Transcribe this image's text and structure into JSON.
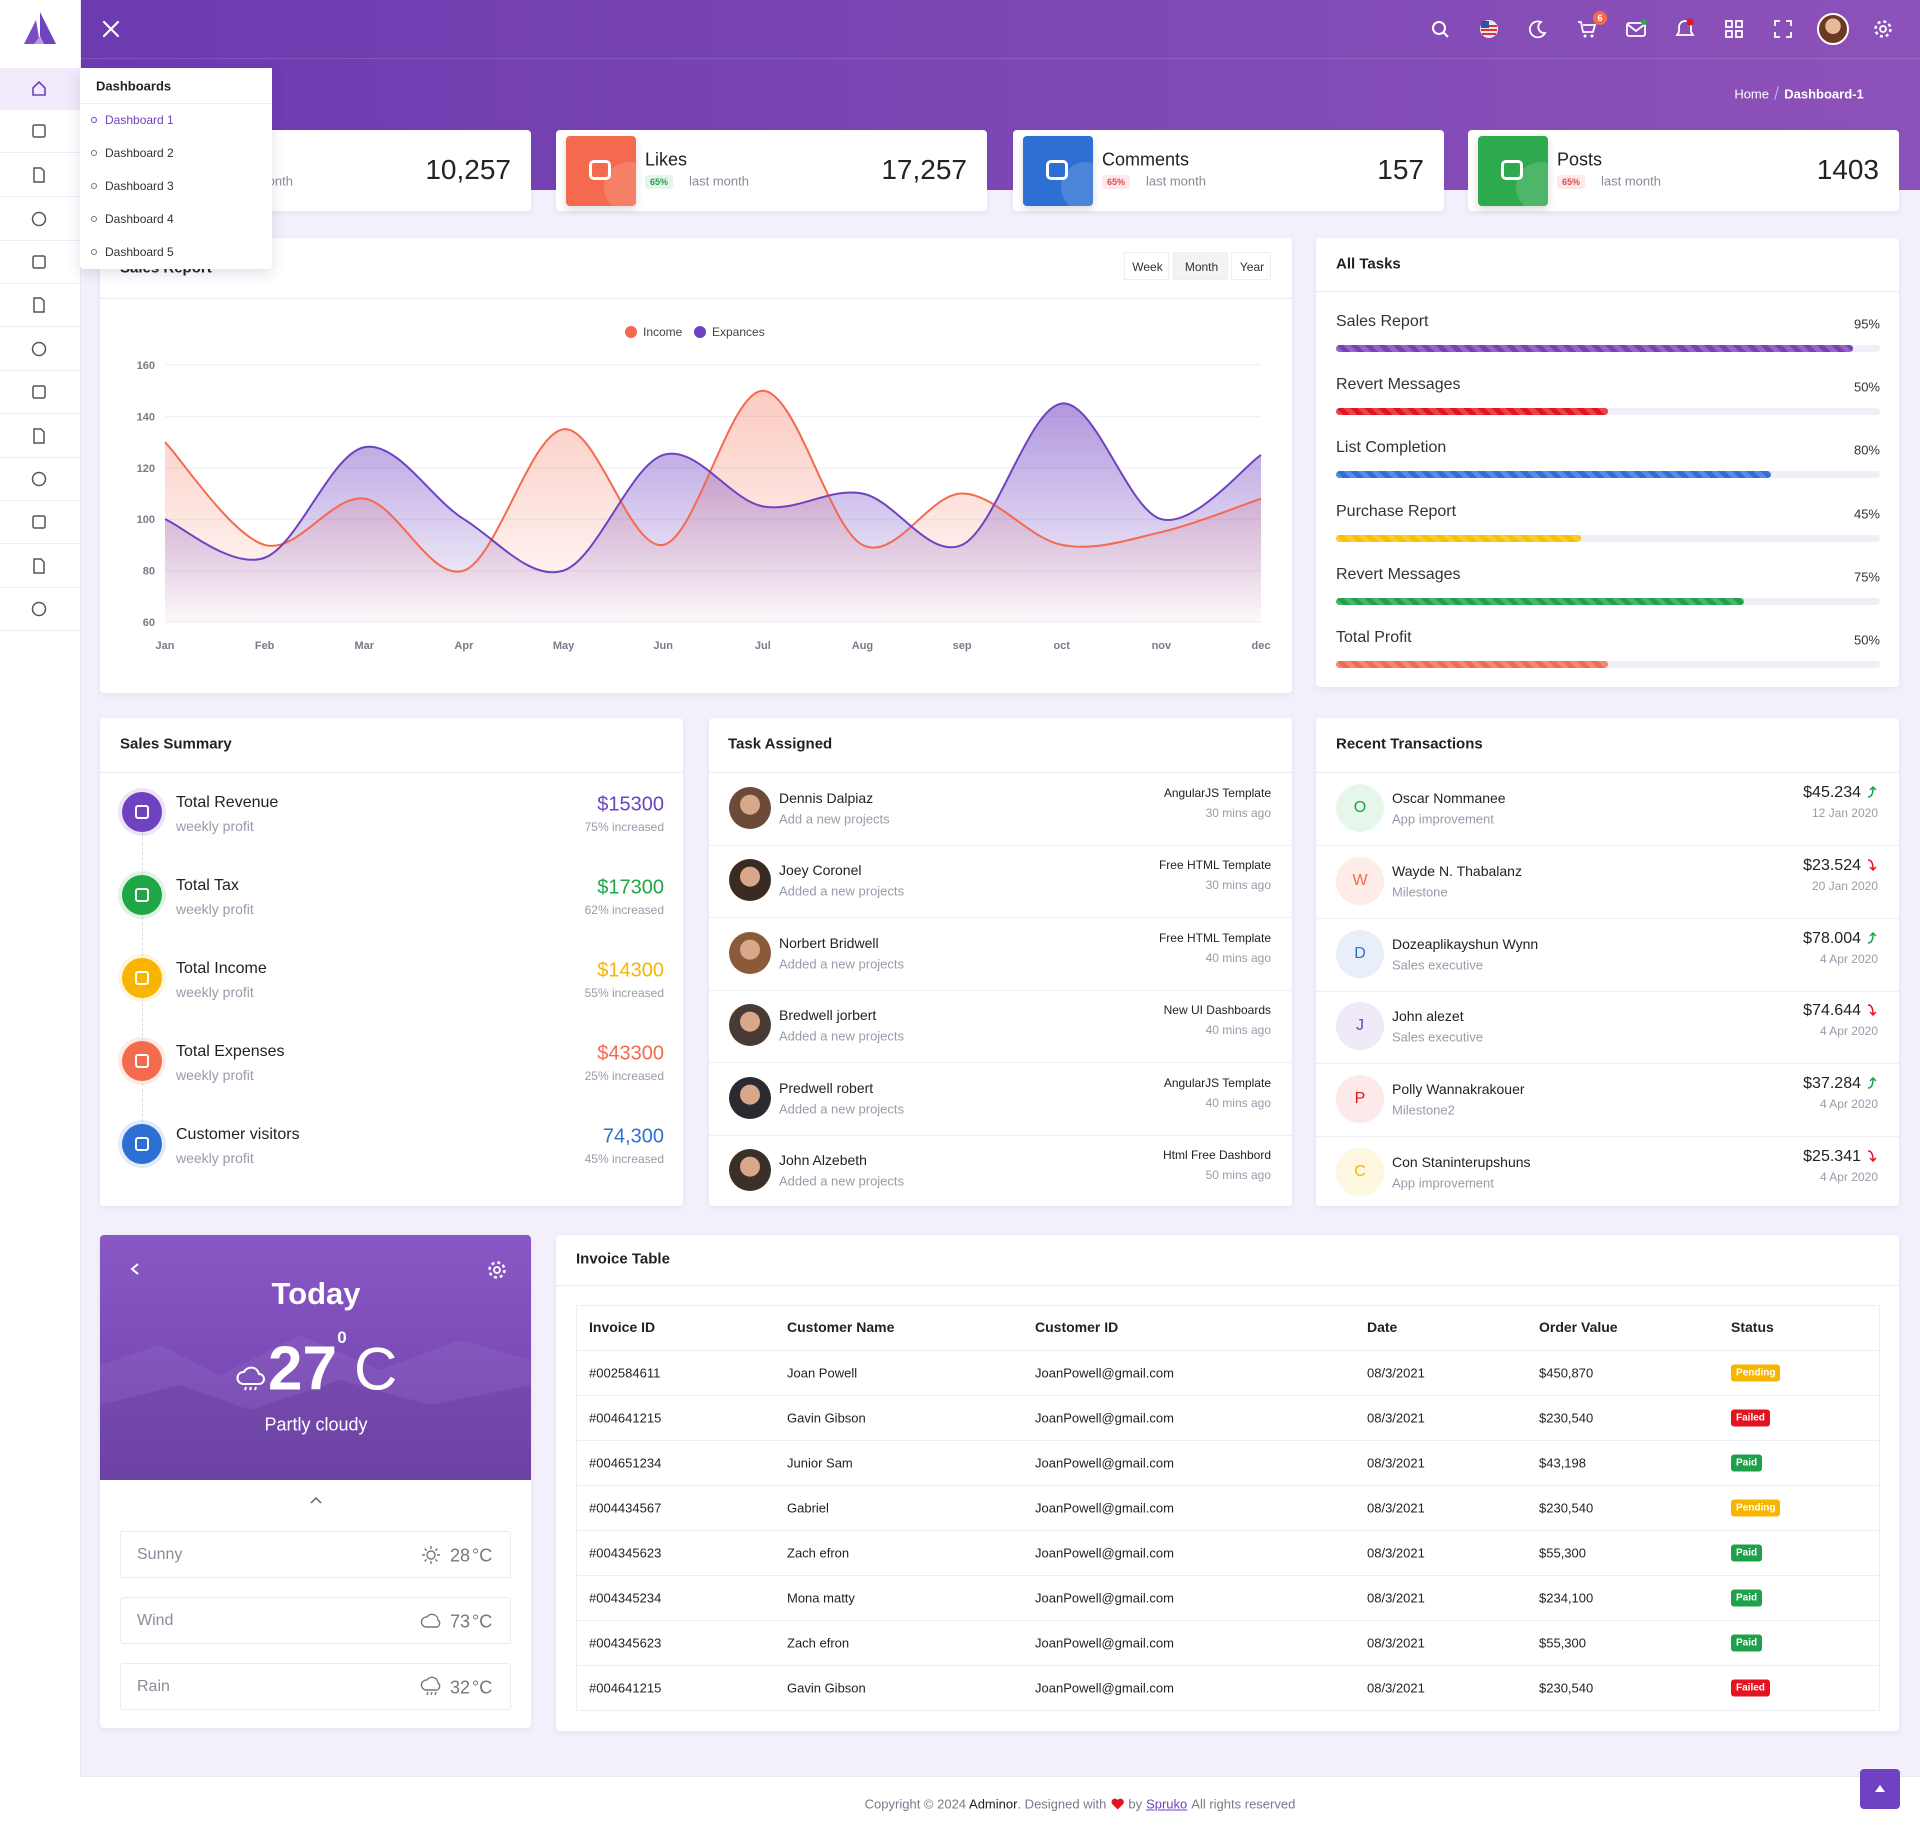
{
  "breadcrumb": {
    "home": "Home",
    "current": "Dashboard-1"
  },
  "menu": {
    "title": "Dashboards",
    "items": [
      "Dashboard 1",
      "Dashboard 2",
      "Dashboard 3",
      "Dashboard 4",
      "Dashboard 5"
    ]
  },
  "stats": [
    {
      "subtitle": "last month",
      "value": "10,257",
      "color": "#7a47b6"
    },
    {
      "title": "Likes",
      "badge": "65%",
      "subtitle": "last month",
      "value": "17,257",
      "color": "#f46a4e",
      "badge_color": "#1f9d4c",
      "badge_bg": "#e4f6ea"
    },
    {
      "title": "Comments",
      "badge": "65%",
      "subtitle": "last month",
      "value": "157",
      "color": "#2d6fd3",
      "badge_color": "#e5484d",
      "badge_bg": "#fde8ea"
    },
    {
      "title": "Posts",
      "badge": "65%",
      "subtitle": "last month",
      "value": "1403",
      "color": "#2eaa4e",
      "badge_color": "#e5484d",
      "badge_bg": "#fde8ea"
    }
  ],
  "sales_report": {
    "buttons": [
      "Week",
      "Month",
      "Year"
    ]
  },
  "chart_data": {
    "type": "line",
    "title": "Sales Report",
    "categories": [
      "Jan",
      "Feb",
      "Mar",
      "Apr",
      "May",
      "Jun",
      "Jul",
      "Aug",
      "sep",
      "oct",
      "nov",
      "dec"
    ],
    "series": [
      {
        "name": "Income",
        "color": "#f46a4e",
        "values": [
          130,
          90,
          108,
          80,
          135,
          90,
          150,
          90,
          110,
          90,
          95,
          108
        ]
      },
      {
        "name": "Expances",
        "color": "#6f42c1",
        "values": [
          100,
          85,
          128,
          100,
          80,
          125,
          105,
          110,
          90,
          145,
          100,
          125
        ]
      }
    ],
    "ylim": [
      60,
      160
    ],
    "yticks": [
      60,
      80,
      100,
      120,
      140,
      160
    ],
    "grid": true,
    "legend": "top"
  },
  "all_tasks": {
    "title": "All Tasks",
    "items": [
      {
        "name": "Sales Report",
        "value": 95,
        "value_label": "95%",
        "color": "#7b3fb8"
      },
      {
        "name": "Revert Messages",
        "value": 50,
        "value_label": "50%",
        "color": "#e3141f"
      },
      {
        "name": "List Completion",
        "value": 80,
        "value_label": "80%",
        "color": "#2f6fd6"
      },
      {
        "name": "Purchase Report",
        "value": 45,
        "value_label": "45%",
        "color": "#f7c000"
      },
      {
        "name": "Revert Messages",
        "value": 75,
        "value_label": "75%",
        "color": "#1fa04a"
      },
      {
        "name": "Total Profit",
        "value": 50,
        "value_label": "50%",
        "color": "#f06b54"
      }
    ]
  },
  "sales_summary": {
    "title": "Sales Summary",
    "items": [
      {
        "title": "Total Revenue",
        "subtitle": "weekly profit",
        "amount": "$15300",
        "change": "75% increased",
        "color": "#6f42c1"
      },
      {
        "title": "Total Tax",
        "subtitle": "weekly profit",
        "amount": "$17300",
        "change": "62% increased",
        "color": "#20a745"
      },
      {
        "title": "Total Income",
        "subtitle": "weekly profit",
        "amount": "$14300",
        "change": "55% increased",
        "color": "#f7b500"
      },
      {
        "title": "Total Expenses",
        "subtitle": "weekly profit",
        "amount": "$43300",
        "change": "25% increased",
        "color": "#f46a4e"
      },
      {
        "title": "Customer visitors",
        "subtitle": "weekly profit",
        "amount": "74,300",
        "change": "45% increased",
        "color": "#2d6fd3"
      }
    ]
  },
  "task_assigned": {
    "title": "Task Assigned",
    "items": [
      {
        "name": "Dennis Dalpiaz",
        "desc": "Add a new projects",
        "project": "AngularJS Template",
        "time": "30 mins ago"
      },
      {
        "name": "Joey Coronel",
        "desc": "Added a new projects",
        "project": "Free HTML Template",
        "time": "30 mins ago"
      },
      {
        "name": "Norbert Bridwell",
        "desc": "Added a new projects",
        "project": "Free HTML Template",
        "time": "40 mins ago"
      },
      {
        "name": "Bredwell jorbert",
        "desc": "Added a new projects",
        "project": "New UI Dashboards",
        "time": "40 mins ago"
      },
      {
        "name": "Predwell robert",
        "desc": "Added a new projects",
        "project": "AngularJS Template",
        "time": "40 mins ago"
      },
      {
        "name": "John Alzebeth",
        "desc": "Added a new projects",
        "project": "Html Free Dashbord",
        "time": "50 mins ago"
      }
    ]
  },
  "recent_transactions": {
    "title": "Recent Transactions",
    "items": [
      {
        "initial": "O",
        "name": "Oscar Nommanee",
        "desc": "App improvement",
        "amount": "$45.234",
        "date": "12 Jan 2020",
        "trend": "up",
        "color": "#1f9d4c",
        "bg": "#e6f6ea"
      },
      {
        "initial": "W",
        "name": "Wayde N. Thabalanz",
        "desc": "Milestone",
        "amount": "$23.524",
        "date": "20 Jan 2020",
        "trend": "down",
        "color": "#f06b54",
        "bg": "#fdece8"
      },
      {
        "initial": "D",
        "name": "Dozeaplikayshun Wynn",
        "desc": "Sales executive",
        "amount": "$78.004",
        "date": "4 Apr 2020",
        "trend": "up",
        "color": "#2d6fd3",
        "bg": "#e8effb"
      },
      {
        "initial": "J",
        "name": "John alezet",
        "desc": "Sales executive",
        "amount": "$74.644",
        "date": "4 Apr 2020",
        "trend": "down",
        "color": "#6f42c1",
        "bg": "#efe9f8"
      },
      {
        "initial": "P",
        "name": "Polly Wannakrakouer",
        "desc": "Milestone2",
        "amount": "$37.284",
        "date": "4 Apr 2020",
        "trend": "up",
        "color": "#e3141f",
        "bg": "#fde8ea"
      },
      {
        "initial": "C",
        "name": "Con Staninterupshuns",
        "desc": "App improvement",
        "amount": "$25.341",
        "date": "4 Apr 2020",
        "trend": "down",
        "color": "#f7b500",
        "bg": "#fef7e0"
      }
    ]
  },
  "weather": {
    "title": "Today",
    "temp": "27",
    "degree": "0",
    "unit": "C",
    "condition": "Partly cloudy",
    "rows": [
      {
        "label": "Sunny",
        "temp": "28",
        "unit": "°C"
      },
      {
        "label": "Wind",
        "temp": "73",
        "unit": "°C"
      },
      {
        "label": "Rain",
        "temp": "32",
        "unit": "°C"
      }
    ]
  },
  "invoice": {
    "title": "Invoice Table",
    "columns": [
      "Invoice ID",
      "Customer Name",
      "Customer ID",
      "Date",
      "Order Value",
      "Status"
    ],
    "rows": [
      {
        "cells": [
          "#002584611",
          "Joan Powell",
          "JoanPowell@gmail.com",
          "08/3/2021",
          "$450,870",
          "Pending"
        ],
        "status_color": "#f7b500"
      },
      {
        "cells": [
          "#004641215",
          "Gavin Gibson",
          "JoanPowell@gmail.com",
          "08/3/2021",
          "$230,540",
          "Failed"
        ],
        "status_color": "#e3141f"
      },
      {
        "cells": [
          "#004651234",
          "Junior Sam",
          "JoanPowell@gmail.com",
          "08/3/2021",
          "$43,198",
          "Paid"
        ],
        "status_color": "#1fa04a"
      },
      {
        "cells": [
          "#004434567",
          "Gabriel",
          "JoanPowell@gmail.com",
          "08/3/2021",
          "$230,540",
          "Pending"
        ],
        "status_color": "#f7b500"
      },
      {
        "cells": [
          "#004345623",
          "Zach efron",
          "JoanPowell@gmail.com",
          "08/3/2021",
          "$55,300",
          "Paid"
        ],
        "status_color": "#1fa04a"
      },
      {
        "cells": [
          "#004345234",
          "Mona matty",
          "JoanPowell@gmail.com",
          "08/3/2021",
          "$234,100",
          "Paid"
        ],
        "status_color": "#1fa04a"
      },
      {
        "cells": [
          "#004345623",
          "Zach efron",
          "JoanPowell@gmail.com",
          "08/3/2021",
          "$55,300",
          "Paid"
        ],
        "status_color": "#1fa04a"
      },
      {
        "cells": [
          "#004641215",
          "Gavin Gibson",
          "JoanPowell@gmail.com",
          "08/3/2021",
          "$230,540",
          "Failed"
        ],
        "status_color": "#e3141f"
      }
    ]
  },
  "header": {
    "cart_badge": "6"
  },
  "footer": {
    "prefix": "Copyright © 2024",
    "brand": "Adminor",
    "middle": ". Designed with",
    "by": "by",
    "author": "Spruko",
    "suffix": "All rights reserved"
  }
}
